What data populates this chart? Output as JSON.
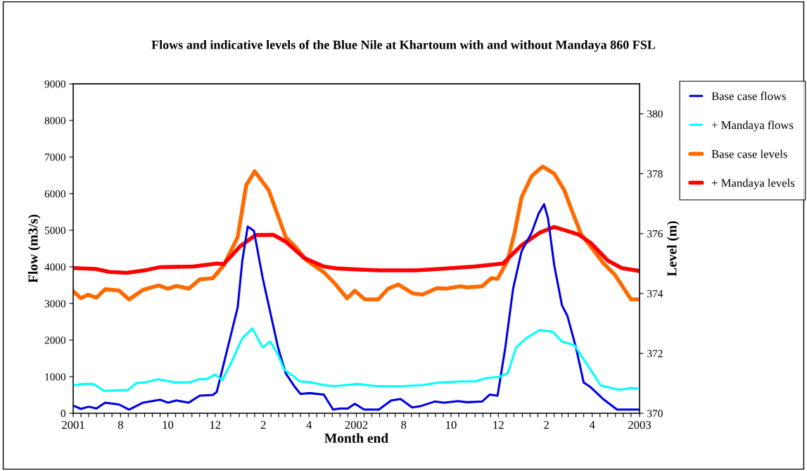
{
  "chart_data": {
    "type": "line",
    "title": "Flows and indicative levels of the Blue Nile at Khartoum with and without Mandaya 860 FSL",
    "xlabel": "Month end",
    "ylabel": "Flow (m3/s)",
    "y2label": "Level (m)",
    "xlim": [
      "2001-06-01",
      "2003-06-01"
    ],
    "xticks": [
      {
        "value": "2001-06-01",
        "label": "2001"
      },
      {
        "value": "2001-06-11",
        "label": null
      },
      {
        "value": "2001-06-21",
        "label": null
      },
      {
        "value": "2001-07-01",
        "label": null
      },
      {
        "value": "2001-07-11",
        "label": null
      },
      {
        "value": "2001-07-21",
        "label": null
      },
      {
        "value": "2001-08-01",
        "label": "8"
      },
      {
        "value": "2001-08-11",
        "label": null
      },
      {
        "value": "2001-08-21",
        "label": null
      },
      {
        "value": "2001-09-01",
        "label": null
      },
      {
        "value": "2001-09-11",
        "label": null
      },
      {
        "value": "2001-09-21",
        "label": null
      },
      {
        "value": "2001-10-01",
        "label": "10"
      },
      {
        "value": "2001-10-11",
        "label": null
      },
      {
        "value": "2001-10-21",
        "label": null
      },
      {
        "value": "2001-11-01",
        "label": null
      },
      {
        "value": "2001-11-11",
        "label": null
      },
      {
        "value": "2001-11-21",
        "label": null
      },
      {
        "value": "2001-12-01",
        "label": "12"
      },
      {
        "value": "2001-12-11",
        "label": null
      },
      {
        "value": "2001-12-21",
        "label": null
      },
      {
        "value": "2002-01-01",
        "label": null
      },
      {
        "value": "2002-01-11",
        "label": null
      },
      {
        "value": "2002-01-21",
        "label": null
      },
      {
        "value": "2002-02-01",
        "label": "2"
      },
      {
        "value": "2002-02-11",
        "label": null
      },
      {
        "value": "2002-02-21",
        "label": null
      },
      {
        "value": "2002-03-01",
        "label": null
      },
      {
        "value": "2002-03-11",
        "label": null
      },
      {
        "value": "2002-03-21",
        "label": null
      },
      {
        "value": "2002-04-01",
        "label": "4"
      },
      {
        "value": "2002-04-11",
        "label": null
      },
      {
        "value": "2002-04-21",
        "label": null
      },
      {
        "value": "2002-05-01",
        "label": null
      },
      {
        "value": "2002-05-11",
        "label": null
      },
      {
        "value": "2002-05-21",
        "label": null
      },
      {
        "value": "2002-06-01",
        "label": "2002"
      },
      {
        "value": "2002-06-11",
        "label": null
      },
      {
        "value": "2002-06-21",
        "label": null
      },
      {
        "value": "2002-07-01",
        "label": null
      },
      {
        "value": "2002-07-11",
        "label": null
      },
      {
        "value": "2002-07-21",
        "label": null
      },
      {
        "value": "2002-08-01",
        "label": "8"
      },
      {
        "value": "2002-08-11",
        "label": null
      },
      {
        "value": "2002-08-21",
        "label": null
      },
      {
        "value": "2002-09-01",
        "label": null
      },
      {
        "value": "2002-09-11",
        "label": null
      },
      {
        "value": "2002-09-21",
        "label": null
      },
      {
        "value": "2002-10-01",
        "label": "10"
      },
      {
        "value": "2002-10-11",
        "label": null
      },
      {
        "value": "2002-10-21",
        "label": null
      },
      {
        "value": "2002-11-01",
        "label": null
      },
      {
        "value": "2002-11-11",
        "label": null
      },
      {
        "value": "2002-11-21",
        "label": null
      },
      {
        "value": "2002-12-01",
        "label": "12"
      },
      {
        "value": "2002-12-11",
        "label": null
      },
      {
        "value": "2002-12-21",
        "label": null
      },
      {
        "value": "2003-01-01",
        "label": null
      },
      {
        "value": "2003-01-11",
        "label": null
      },
      {
        "value": "2003-01-21",
        "label": null
      },
      {
        "value": "2003-02-01",
        "label": "2"
      },
      {
        "value": "2003-02-11",
        "label": null
      },
      {
        "value": "2003-02-21",
        "label": null
      },
      {
        "value": "2003-03-01",
        "label": null
      },
      {
        "value": "2003-03-11",
        "label": null
      },
      {
        "value": "2003-03-21",
        "label": null
      },
      {
        "value": "2003-04-01",
        "label": "4"
      },
      {
        "value": "2003-04-11",
        "label": null
      },
      {
        "value": "2003-04-21",
        "label": null
      },
      {
        "value": "2003-05-01",
        "label": null
      },
      {
        "value": "2003-05-11",
        "label": null
      },
      {
        "value": "2003-05-21",
        "label": null
      },
      {
        "value": "2003-06-01",
        "label": "2003"
      }
    ],
    "ylim": [
      0,
      9000
    ],
    "yticks": [
      0,
      1000,
      2000,
      3000,
      4000,
      5000,
      6000,
      7000,
      8000,
      9000
    ],
    "y2lim": [
      370,
      381
    ],
    "y2ticks": [
      370,
      372,
      374,
      376,
      378,
      380
    ],
    "grid": false,
    "legend": "right",
    "marker": "none",
    "line_style": "solid",
    "series": [
      {
        "name": "Base case flows",
        "color": "#0000e6",
        "x": [
          "2001-06-01",
          "2001-06-11",
          "2001-06-21",
          "2001-07-01",
          "2001-07-12",
          "2001-07-30",
          "2001-08-12",
          "2001-08-30",
          "2001-09-21",
          "2001-10-01",
          "2001-10-12",
          "2001-10-28",
          "2001-11-11",
          "2001-11-28",
          "2001-12-03",
          "2001-12-21",
          "2001-12-30",
          "2002-01-05",
          "2002-01-12",
          "2002-01-20",
          "2002-01-31",
          "2002-02-10",
          "2002-02-20",
          "2002-03-02",
          "2002-03-14",
          "2002-03-21",
          "2002-04-02",
          "2002-04-20",
          "2002-05-02",
          "2002-05-11",
          "2002-05-21",
          "2002-05-30",
          "2002-06-11",
          "2002-06-30",
          "2002-07-16",
          "2002-07-28",
          "2002-08-12",
          "2002-08-22",
          "2002-09-10",
          "2002-09-22",
          "2002-10-10",
          "2002-10-22",
          "2002-11-10",
          "2002-11-20",
          "2002-11-30",
          "2002-12-10",
          "2002-12-20",
          "2002-12-31",
          "2003-01-13",
          "2003-01-22",
          "2003-01-29",
          "2003-02-03",
          "2003-02-11",
          "2003-02-21",
          "2003-02-28",
          "2003-03-11",
          "2003-03-21",
          "2003-03-30",
          "2003-04-15",
          "2003-05-03",
          "2003-06-01"
        ],
        "values": [
          210,
          120,
          180,
          130,
          290,
          240,
          100,
          290,
          370,
          290,
          350,
          290,
          480,
          500,
          580,
          2120,
          2890,
          4170,
          5100,
          4980,
          3720,
          2760,
          1800,
          1090,
          710,
          530,
          550,
          510,
          100,
          130,
          130,
          260,
          100,
          100,
          350,
          390,
          160,
          190,
          320,
          290,
          330,
          300,
          320,
          510,
          480,
          1800,
          3400,
          4430,
          4940,
          5460,
          5710,
          5330,
          4050,
          2950,
          2660,
          1800,
          840,
          710,
          390,
          100,
          100
        ]
      },
      {
        "name": "+ Mandaya flows",
        "color": "#00ffff",
        "x": [
          "2001-06-01",
          "2001-06-12",
          "2001-06-27",
          "2001-07-11",
          "2001-07-30",
          "2001-08-11",
          "2001-08-21",
          "2001-09-03",
          "2001-09-19",
          "2001-10-03",
          "2001-10-12",
          "2001-10-30",
          "2001-11-10",
          "2001-11-20",
          "2001-12-01",
          "2001-12-10",
          "2001-12-21",
          "2002-01-05",
          "2002-01-18",
          "2002-01-31",
          "2002-02-10",
          "2002-02-20",
          "2002-02-28",
          "2002-03-11",
          "2002-03-20",
          "2002-04-02",
          "2002-04-20",
          "2002-05-05",
          "2002-05-17",
          "2002-06-03",
          "2002-06-26",
          "2002-08-01",
          "2002-08-25",
          "2002-09-16",
          "2002-10-16",
          "2002-11-01",
          "2002-11-16",
          "2002-12-03",
          "2002-12-13",
          "2002-12-24",
          "2003-01-06",
          "2003-01-23",
          "2003-02-09",
          "2003-02-21",
          "2003-03-09",
          "2003-03-27",
          "2003-04-12",
          "2003-05-06",
          "2003-05-21",
          "2003-06-01"
        ],
        "values": [
          760,
          800,
          800,
          610,
          630,
          640,
          820,
          850,
          930,
          870,
          840,
          850,
          930,
          930,
          1060,
          900,
          1350,
          2050,
          2320,
          1800,
          1960,
          1600,
          1190,
          1030,
          870,
          850,
          770,
          740,
          770,
          800,
          740,
          740,
          770,
          840,
          870,
          870,
          960,
          1000,
          1090,
          1800,
          2050,
          2270,
          2230,
          1960,
          1860,
          1280,
          760,
          640,
          690,
          670
        ]
      },
      {
        "name": "Base case levels",
        "color": "#ff6a00",
        "axis": "y2",
        "x": [
          "2001-06-01",
          "2001-06-11",
          "2001-06-20",
          "2001-07-01",
          "2001-07-12",
          "2001-07-30",
          "2001-08-12",
          "2001-08-30",
          "2001-09-19",
          "2001-10-01",
          "2001-10-12",
          "2001-10-28",
          "2001-11-11",
          "2001-11-28",
          "2001-12-12",
          "2001-12-30",
          "2002-01-10",
          "2002-01-21",
          "2002-02-08",
          "2002-02-20",
          "2002-03-02",
          "2002-03-14",
          "2002-03-29",
          "2002-04-20",
          "2002-05-05",
          "2002-05-20",
          "2002-05-30",
          "2002-06-12",
          "2002-06-29",
          "2002-07-12",
          "2002-07-25",
          "2002-08-13",
          "2002-08-25",
          "2002-09-13",
          "2002-09-25",
          "2002-10-13",
          "2002-10-22",
          "2002-11-10",
          "2002-11-22",
          "2002-11-30",
          "2002-12-13",
          "2002-12-22",
          "2002-12-31",
          "2003-01-13",
          "2003-01-27",
          "2003-02-11",
          "2003-02-24",
          "2003-03-06",
          "2003-03-18",
          "2003-03-30",
          "2003-04-15",
          "2003-04-30",
          "2003-05-12",
          "2003-05-21",
          "2003-06-01"
        ],
        "values": [
          374.08,
          373.84,
          373.96,
          373.86,
          374.14,
          374.1,
          373.8,
          374.12,
          374.27,
          374.16,
          374.25,
          374.16,
          374.47,
          374.51,
          374.94,
          375.88,
          377.61,
          378.08,
          377.45,
          376.59,
          375.88,
          375.57,
          375.1,
          374.71,
          374.31,
          373.84,
          374.09,
          373.8,
          373.8,
          374.16,
          374.3,
          374.0,
          373.96,
          374.18,
          374.16,
          374.24,
          374.2,
          374.24,
          374.51,
          374.49,
          375.1,
          376.04,
          377.22,
          377.92,
          378.24,
          378.0,
          377.45,
          376.75,
          375.96,
          375.57,
          375.02,
          374.63,
          374.16,
          373.8,
          373.8
        ]
      },
      {
        "name": "+ Mandaya levels",
        "color": "#ff0000",
        "axis": "y2",
        "x": [
          "2001-06-01",
          "2001-06-30",
          "2001-07-18",
          "2001-08-09",
          "2001-09-03",
          "2001-09-21",
          "2001-11-03",
          "2001-12-03",
          "2001-12-12",
          "2002-01-02",
          "2002-01-22",
          "2002-02-14",
          "2002-03-02",
          "2002-03-26",
          "2002-04-20",
          "2002-05-05",
          "2002-06-03",
          "2002-06-30",
          "2002-08-16",
          "2002-09-16",
          "2002-11-01",
          "2002-12-07",
          "2002-12-31",
          "2003-01-24",
          "2003-02-11",
          "2003-03-03",
          "2003-03-15",
          "2003-03-30",
          "2003-04-21",
          "2003-05-09",
          "2003-06-01"
        ],
        "values": [
          374.85,
          374.82,
          374.72,
          374.69,
          374.78,
          374.88,
          374.9,
          375.0,
          374.98,
          375.57,
          375.95,
          375.96,
          375.73,
          375.18,
          374.9,
          374.84,
          374.8,
          374.77,
          374.77,
          374.82,
          374.9,
          375.0,
          375.61,
          376.04,
          376.22,
          376.06,
          375.96,
          375.69,
          375.1,
          374.85,
          374.75
        ]
      }
    ]
  }
}
